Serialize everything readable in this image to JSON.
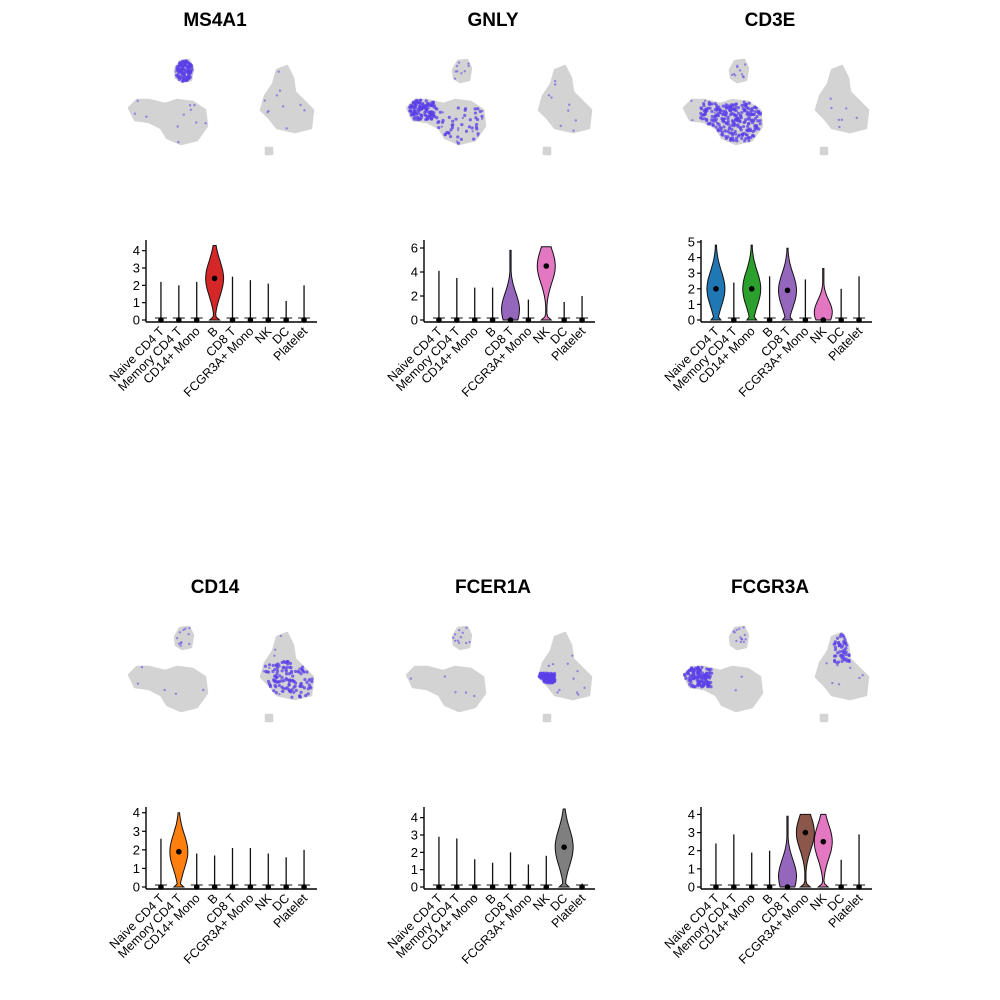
{
  "palette": {
    "background": "#ffffff",
    "umap_base": "#d3d3d3",
    "umap_high": "#5b3fe8",
    "axis": "#000000",
    "group_colors": {
      "Naive CD4 T": "#1f77b4",
      "Memory CD4 T": "#ff7f0e",
      "CD14+ Mono": "#2ca02c",
      "B": "#d62728",
      "CD8 T": "#9467bd",
      "FCGR3A+ Mono": "#8c564b",
      "NK": "#e377c2",
      "DC": "#7f7f7f",
      "Platelet": "#bcbd22"
    }
  },
  "chart_data": [
    {
      "type": "violin",
      "title": "MS4A1",
      "umap_highlight": [
        "B"
      ],
      "categories": [
        "Naive CD4 T",
        "Memory CD4 T",
        "CD14+ Mono",
        "B",
        "CD8 T",
        "FCGR3A+ Mono",
        "NK",
        "DC",
        "Platelet"
      ],
      "ylim": [
        0,
        4.5
      ],
      "yticks": [
        0,
        1,
        2,
        3,
        4
      ],
      "median": [
        0,
        0,
        0,
        2.4,
        0,
        0,
        0,
        0,
        0
      ],
      "max": [
        2.2,
        2.0,
        2.2,
        4.3,
        2.5,
        2.3,
        2.1,
        1.1,
        2.0
      ],
      "filled": [
        false,
        false,
        false,
        true,
        false,
        false,
        false,
        false,
        false
      ]
    },
    {
      "type": "violin",
      "title": "GNLY",
      "umap_highlight": [
        "NK",
        "CD8 T"
      ],
      "categories": [
        "Naive CD4 T",
        "Memory CD4 T",
        "CD14+ Mono",
        "B",
        "CD8 T",
        "FCGR3A+ Mono",
        "NK",
        "DC",
        "Platelet"
      ],
      "ylim": [
        0,
        6.5
      ],
      "yticks": [
        0,
        2,
        4,
        6
      ],
      "median": [
        0,
        0,
        0,
        0,
        0,
        0,
        4.5,
        0,
        0
      ],
      "max": [
        4.1,
        3.5,
        2.7,
        2.7,
        5.8,
        1.7,
        6.1,
        1.5,
        2.0
      ],
      "filled": [
        false,
        false,
        false,
        false,
        true,
        false,
        true,
        false,
        false
      ]
    },
    {
      "type": "violin",
      "title": "CD3E",
      "umap_highlight": [
        "Naive CD4 T",
        "Memory CD4 T",
        "CD8 T"
      ],
      "categories": [
        "Naive CD4 T",
        "Memory CD4 T",
        "CD14+ Mono",
        "B",
        "CD8 T",
        "FCGR3A+ Mono",
        "NK",
        "DC",
        "Platelet"
      ],
      "ylim": [
        0,
        5
      ],
      "yticks": [
        0,
        1,
        2,
        3,
        4,
        5
      ],
      "median": [
        2.0,
        0,
        2.0,
        0,
        1.9,
        0,
        0,
        0,
        0
      ],
      "max": [
        4.8,
        2.4,
        4.8,
        2.8,
        4.6,
        2.6,
        3.3,
        2.0,
        2.8
      ],
      "filled": [
        true,
        false,
        true,
        false,
        true,
        false,
        true,
        false,
        false
      ]
    },
    {
      "type": "violin",
      "title": "CD14",
      "umap_highlight": [
        "CD14+ Mono"
      ],
      "categories": [
        "Naive CD4 T",
        "Memory CD4 T",
        "CD14+ Mono",
        "B",
        "CD8 T",
        "FCGR3A+ Mono",
        "NK",
        "DC",
        "Platelet"
      ],
      "ylim": [
        0,
        4.2
      ],
      "yticks": [
        0,
        1,
        2,
        3,
        4
      ],
      "median": [
        0,
        1.9,
        0,
        0,
        0,
        0,
        0,
        0,
        0
      ],
      "max": [
        2.6,
        4.0,
        1.8,
        1.7,
        2.1,
        2.1,
        1.8,
        1.6,
        2.0
      ],
      "filled": [
        false,
        true,
        false,
        false,
        false,
        false,
        false,
        false,
        false
      ]
    },
    {
      "type": "violin",
      "title": "FCER1A",
      "umap_highlight": [
        "DC"
      ],
      "categories": [
        "Naive CD4 T",
        "Memory CD4 T",
        "CD14+ Mono",
        "B",
        "CD8 T",
        "FCGR3A+ Mono",
        "NK",
        "DC",
        "Platelet"
      ],
      "ylim": [
        0,
        4.5
      ],
      "yticks": [
        0,
        1,
        2,
        3,
        4
      ],
      "median": [
        0,
        0,
        0,
        0,
        0,
        0,
        0,
        2.3,
        0
      ],
      "max": [
        2.9,
        2.8,
        1.6,
        1.4,
        2.0,
        1.3,
        1.8,
        4.5,
        0.2
      ],
      "filled": [
        false,
        false,
        false,
        false,
        false,
        false,
        false,
        true,
        false
      ]
    },
    {
      "type": "violin",
      "title": "FCGR3A",
      "umap_highlight": [
        "FCGR3A+ Mono",
        "NK"
      ],
      "categories": [
        "Naive CD4 T",
        "Memory CD4 T",
        "CD14+ Mono",
        "B",
        "CD8 T",
        "FCGR3A+ Mono",
        "NK",
        "DC",
        "Platelet"
      ],
      "ylim": [
        0,
        4.3
      ],
      "yticks": [
        0,
        1,
        2,
        3,
        4
      ],
      "median": [
        0,
        0,
        0,
        0,
        0,
        3.0,
        2.5,
        0,
        0
      ],
      "max": [
        2.4,
        2.9,
        1.9,
        2.0,
        3.9,
        4.0,
        4.0,
        1.5,
        2.9
      ],
      "filled": [
        false,
        false,
        false,
        false,
        true,
        true,
        true,
        false,
        false
      ]
    }
  ]
}
